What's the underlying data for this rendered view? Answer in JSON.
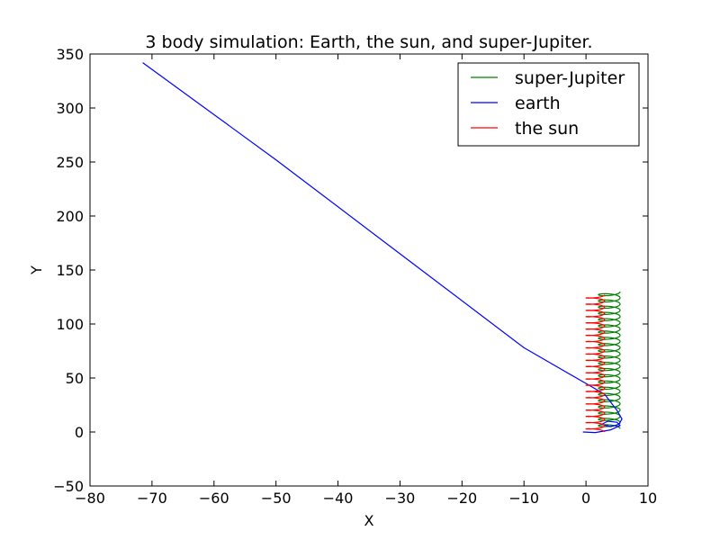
{
  "chart_data": {
    "type": "line",
    "title": "3 body simulation: Earth, the sun, and super-Jupiter.",
    "xlabel": "X",
    "ylabel": "Y",
    "xlim": [
      -80,
      10
    ],
    "ylim": [
      -50,
      350
    ],
    "xticks": [
      "−80",
      "−70",
      "−60",
      "−50",
      "−40",
      "−30",
      "−20",
      "−10",
      "0",
      "10"
    ],
    "yticks": [
      "−50",
      "0",
      "50",
      "100",
      "150",
      "200",
      "250",
      "300",
      "350"
    ],
    "grid": false,
    "legend_position": "top-right",
    "series": [
      {
        "name": "super-Jupiter",
        "color": "#008000",
        "shape": "helix",
        "x_range": [
          2.0,
          5.5
        ],
        "y_start": 3,
        "y_end": 130,
        "turns": 22
      },
      {
        "name": "earth",
        "color": "#0000ff",
        "x": [
          -0.5,
          1.5,
          4.0,
          5.5,
          5.0,
          3.5,
          2.5,
          4.0,
          5.3,
          5.8,
          5.0,
          3.0,
          -10,
          -30,
          -50,
          -71.5
        ],
        "y": [
          0,
          -0.5,
          2,
          6,
          9,
          10,
          7,
          5,
          7,
          12,
          20,
          35,
          78,
          165,
          252,
          342
        ]
      },
      {
        "name": "the sun",
        "color": "#ff0000",
        "shape": "zigzag",
        "x_range": [
          0,
          3.0
        ],
        "y_start": 0,
        "y_end": 127,
        "turns": 22
      }
    ]
  }
}
